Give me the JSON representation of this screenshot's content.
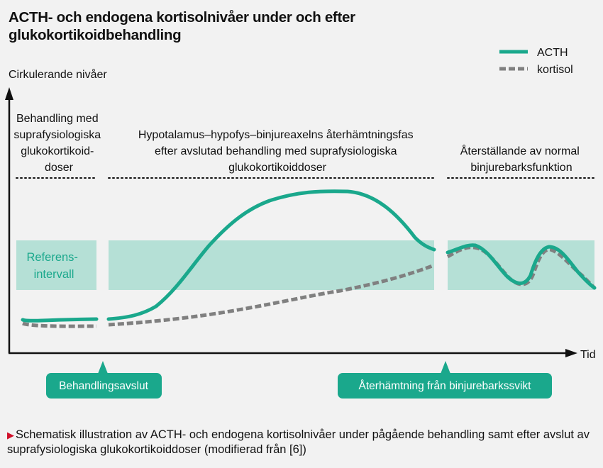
{
  "title": "ACTH- och endogena kortisolnivåer under och efter glukokortikoidbehandling",
  "legend": [
    {
      "label": "ACTH",
      "style": "solid",
      "color": "#1aa88c"
    },
    {
      "label": "kortisol",
      "style": "dashed",
      "color": "#808080"
    }
  ],
  "y_axis_label": "Cirkulerande nivåer",
  "x_axis_label": "Tid",
  "phases": [
    {
      "lines": [
        "Behandling med",
        "suprafysiologiska",
        "glukokortikoid-",
        "doser"
      ]
    },
    {
      "lines": [
        "Hypotalamus–hypofys–binjureaxelns återhämtningsfas",
        "efter avslutad behandling med suprafysiologiska",
        "glukokortikoiddoser"
      ]
    },
    {
      "lines": [
        "Återställande av normal",
        "binjurebarksfunktion"
      ]
    }
  ],
  "reference_band": {
    "lines": [
      "Referens-",
      "intervall"
    ],
    "color": "#b5e0d6",
    "text_color": "#1aa88c"
  },
  "events": [
    {
      "label": "Behandlingsavslut"
    },
    {
      "label": "Återhämtning från binjurebarkssvikt"
    }
  ],
  "caption": "Schematisk illustration av ACTH- och endogena kortisolnivåer under pågående behandling samt efter avslut av suprafysiologiska glukokortikoiddoser (modifierad från [6])",
  "colors": {
    "accent": "#1aa88c",
    "cortisol": "#808080",
    "caption_marker": "#d0102a",
    "background": "#f2f2f2"
  }
}
